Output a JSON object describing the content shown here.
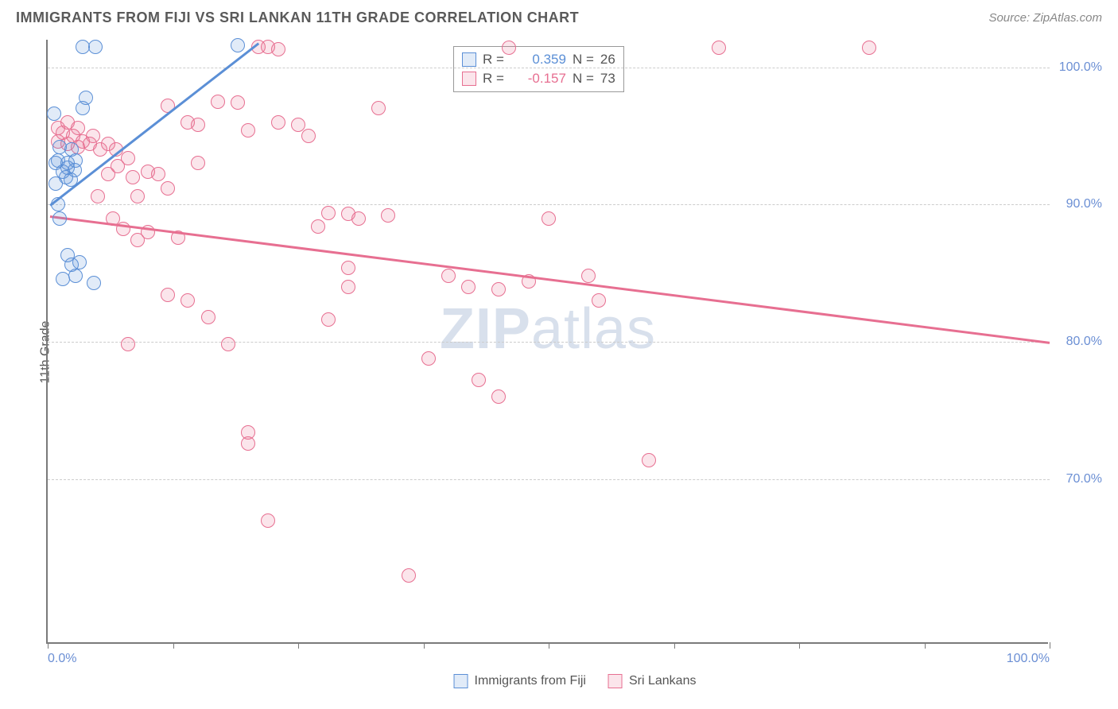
{
  "header": {
    "title": "IMMIGRANTS FROM FIJI VS SRI LANKAN 11TH GRADE CORRELATION CHART",
    "source": "Source: ZipAtlas.com"
  },
  "chart": {
    "type": "scatter",
    "y_axis_title": "11th Grade",
    "x_range": [
      0,
      100
    ],
    "y_range": [
      58,
      102
    ],
    "y_ticks": [
      70,
      80,
      90,
      100
    ],
    "y_tick_labels": [
      "70.0%",
      "80.0%",
      "90.0%",
      "100.0%"
    ],
    "x_ticks": [
      0,
      50,
      100
    ],
    "x_tick_label_0": "0.0%",
    "x_tick_label_100": "100.0%",
    "x_minor_ticks": [
      0,
      12.5,
      25,
      37.5,
      50,
      62.5,
      75,
      87.5,
      100
    ],
    "background_color": "#ffffff",
    "grid_color": "#cccccc",
    "axis_color": "#7a7a7a",
    "tick_label_color": "#6b8fd4",
    "marker_radius": 9,
    "marker_fill_opacity": 0.18,
    "watermark": {
      "zip": "ZIP",
      "atlas": "atlas",
      "color": "#b9c7de"
    },
    "series": [
      {
        "name": "Immigrants from Fiji",
        "color": "#5b8fd6",
        "fill": "rgba(91,143,214,0.18)",
        "R": "0.359",
        "N": "26",
        "trend": {
          "x1": 0.2,
          "y1": 90.0,
          "x2": 21.0,
          "y2": 101.8
        },
        "points": [
          [
            1.0,
            90.0
          ],
          [
            1.2,
            89.0
          ],
          [
            0.8,
            91.5
          ],
          [
            1.5,
            92.4
          ],
          [
            1.8,
            92.0
          ],
          [
            2.0,
            92.7
          ],
          [
            2.0,
            93.0
          ],
          [
            1.0,
            93.2
          ],
          [
            0.8,
            93.0
          ],
          [
            2.3,
            91.8
          ],
          [
            2.7,
            92.5
          ],
          [
            2.8,
            93.2
          ],
          [
            1.2,
            94.2
          ],
          [
            2.4,
            94.0
          ],
          [
            0.6,
            96.6
          ],
          [
            3.5,
            97.0
          ],
          [
            3.8,
            97.8
          ],
          [
            3.5,
            101.5
          ],
          [
            4.8,
            101.5
          ],
          [
            19.0,
            101.6
          ],
          [
            2.0,
            86.3
          ],
          [
            2.4,
            85.6
          ],
          [
            3.2,
            85.8
          ],
          [
            2.8,
            84.8
          ],
          [
            1.5,
            84.6
          ],
          [
            4.6,
            84.3
          ]
        ]
      },
      {
        "name": "Sri Lankans",
        "color": "#e76f91",
        "fill": "rgba(231,111,145,0.18)",
        "R": "-0.157",
        "N": "73",
        "trend": {
          "x1": 0.2,
          "y1": 89.2,
          "x2": 100.0,
          "y2": 80.0
        },
        "points": [
          [
            1.0,
            94.6
          ],
          [
            2.0,
            94.4
          ],
          [
            3.0,
            94.2
          ],
          [
            1.5,
            95.2
          ],
          [
            2.5,
            95.0
          ],
          [
            3.5,
            94.6
          ],
          [
            4.2,
            94.4
          ],
          [
            1.0,
            95.6
          ],
          [
            2.0,
            96.0
          ],
          [
            3.0,
            95.6
          ],
          [
            4.5,
            95.0
          ],
          [
            6.0,
            92.2
          ],
          [
            7.0,
            92.8
          ],
          [
            8.5,
            92.0
          ],
          [
            5.2,
            94.0
          ],
          [
            6.0,
            94.4
          ],
          [
            6.8,
            94.0
          ],
          [
            8.0,
            93.4
          ],
          [
            5.0,
            90.6
          ],
          [
            6.5,
            89.0
          ],
          [
            7.5,
            88.2
          ],
          [
            9.0,
            87.4
          ],
          [
            11.0,
            92.2
          ],
          [
            10.0,
            92.4
          ],
          [
            9.0,
            90.6
          ],
          [
            10.0,
            88.0
          ],
          [
            12.0,
            91.2
          ],
          [
            12.0,
            97.2
          ],
          [
            13.0,
            87.6
          ],
          [
            14.0,
            96.0
          ],
          [
            15.0,
            93.0
          ],
          [
            15.0,
            95.8
          ],
          [
            17.0,
            97.5
          ],
          [
            19.0,
            97.4
          ],
          [
            20.0,
            95.4
          ],
          [
            21.0,
            101.5
          ],
          [
            22.0,
            101.5
          ],
          [
            23.0,
            101.3
          ],
          [
            23.0,
            96.0
          ],
          [
            25.0,
            95.8
          ],
          [
            26.0,
            95.0
          ],
          [
            27.0,
            88.4
          ],
          [
            28.0,
            89.4
          ],
          [
            28.0,
            81.6
          ],
          [
            30.0,
            89.3
          ],
          [
            30.0,
            85.4
          ],
          [
            30.0,
            84.0
          ],
          [
            31.0,
            89.0
          ],
          [
            20.0,
            73.4
          ],
          [
            20.0,
            72.6
          ],
          [
            22.0,
            67.0
          ],
          [
            18.0,
            79.8
          ],
          [
            16.0,
            81.8
          ],
          [
            14.0,
            83.0
          ],
          [
            12.0,
            83.4
          ],
          [
            8.0,
            79.8
          ],
          [
            33.0,
            97.0
          ],
          [
            34.0,
            89.2
          ],
          [
            36.0,
            63.0
          ],
          [
            38.0,
            78.8
          ],
          [
            40.0,
            84.8
          ],
          [
            42.0,
            84.0
          ],
          [
            43.0,
            77.2
          ],
          [
            45.0,
            83.8
          ],
          [
            45.0,
            76.0
          ],
          [
            46.0,
            101.4
          ],
          [
            48.0,
            84.4
          ],
          [
            50.0,
            89.0
          ],
          [
            54.0,
            84.8
          ],
          [
            55.0,
            83.0
          ],
          [
            60.0,
            71.4
          ],
          [
            67.0,
            101.4
          ],
          [
            82.0,
            101.4
          ]
        ]
      }
    ],
    "stats_box": {
      "r_label": "R =",
      "n_label": "N ="
    },
    "legend": {
      "items": [
        "Immigrants from Fiji",
        "Sri Lankans"
      ]
    }
  }
}
